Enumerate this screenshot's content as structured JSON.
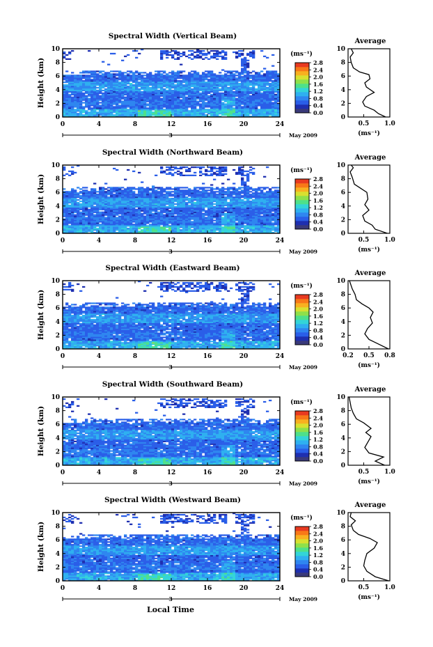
{
  "figure": {
    "time_axis_label": "Local Time",
    "height_axis_label": "Height (km)",
    "date_day": "3",
    "date_month_year": "May 2009",
    "colorbar_unit": "(ms⁻¹)",
    "profile_title": "Average",
    "profile_xlabel": "(ms⁻¹)"
  },
  "colorbar": {
    "ticks": [
      "0.0",
      "0.4",
      "0.8",
      "1.2",
      "1.6",
      "2.0",
      "2.4",
      "2.8"
    ],
    "colors": [
      "#3a3a7a",
      "#1e2fb0",
      "#2a5ee8",
      "#2f86f0",
      "#2fb0f0",
      "#33d4d8",
      "#4ee08a",
      "#8fe04a",
      "#d8e030",
      "#f8b020",
      "#f87818",
      "#e83a20"
    ]
  },
  "chart_data": [
    {
      "type": "heatmap",
      "title": "Spectral Width (Vertical Beam)",
      "xlabel": "Local Time",
      "ylabel": "Height (km)",
      "x_ticks": [
        0,
        4,
        8,
        12,
        16,
        20,
        24
      ],
      "y_ticks": [
        0,
        2,
        4,
        6,
        8,
        10
      ],
      "xlim": [
        0,
        24
      ],
      "ylim": [
        0,
        10
      ],
      "value_range": [
        0.0,
        2.8
      ],
      "value_unit": "ms⁻¹",
      "profile": {
        "title": "Average",
        "xlim": [
          0.2,
          1.0
        ],
        "x_ticks": [
          "0.5",
          "1.0"
        ],
        "points": [
          [
            0.92,
            0.0
          ],
          [
            0.78,
            0.5
          ],
          [
            0.7,
            1.0
          ],
          [
            0.52,
            1.6
          ],
          [
            0.48,
            2.2
          ],
          [
            0.55,
            3.0
          ],
          [
            0.7,
            3.6
          ],
          [
            0.55,
            4.4
          ],
          [
            0.52,
            5.0
          ],
          [
            0.62,
            5.6
          ],
          [
            0.6,
            6.2
          ],
          [
            0.42,
            6.6
          ],
          [
            0.3,
            7.2
          ],
          [
            0.26,
            8.0
          ],
          [
            0.24,
            8.8
          ],
          [
            0.3,
            9.4
          ],
          [
            0.26,
            10.0
          ]
        ]
      }
    },
    {
      "type": "heatmap",
      "title": "Spectral Width (Northward Beam)",
      "xlabel": "Local Time",
      "ylabel": "Height (km)",
      "x_ticks": [
        0,
        4,
        8,
        12,
        16,
        20,
        24
      ],
      "y_ticks": [
        0,
        2,
        4,
        6,
        8,
        10
      ],
      "xlim": [
        0,
        24
      ],
      "ylim": [
        0,
        10
      ],
      "value_range": [
        0.0,
        2.8
      ],
      "value_unit": "ms⁻¹",
      "profile": {
        "title": "Average",
        "xlim": [
          0.2,
          1.0
        ],
        "x_ticks": [
          "0.5",
          "1.0"
        ],
        "points": [
          [
            0.95,
            0.0
          ],
          [
            0.72,
            0.6
          ],
          [
            0.66,
            1.2
          ],
          [
            0.52,
            1.8
          ],
          [
            0.48,
            2.6
          ],
          [
            0.6,
            3.4
          ],
          [
            0.52,
            4.2
          ],
          [
            0.58,
            5.0
          ],
          [
            0.56,
            6.0
          ],
          [
            0.44,
            6.6
          ],
          [
            0.32,
            7.2
          ],
          [
            0.28,
            8.2
          ],
          [
            0.24,
            9.0
          ],
          [
            0.3,
            9.6
          ],
          [
            0.26,
            10.0
          ]
        ]
      }
    },
    {
      "type": "heatmap",
      "title": "Spectral Width (Eastward Beam)",
      "xlabel": "Local Time",
      "ylabel": "Height (km)",
      "x_ticks": [
        0,
        4,
        8,
        12,
        16,
        20,
        24
      ],
      "y_ticks": [
        0,
        2,
        4,
        6,
        8,
        10
      ],
      "xlim": [
        0,
        24
      ],
      "ylim": [
        0,
        10
      ],
      "value_range": [
        0.0,
        2.8
      ],
      "value_unit": "ms⁻¹",
      "profile": {
        "title": "Average",
        "xlim": [
          0.2,
          0.8
        ],
        "x_ticks": [
          "0.2",
          "0.5",
          "0.8"
        ],
        "points": [
          [
            0.78,
            0.0
          ],
          [
            0.62,
            0.8
          ],
          [
            0.5,
            1.4
          ],
          [
            0.44,
            2.2
          ],
          [
            0.48,
            3.0
          ],
          [
            0.55,
            3.8
          ],
          [
            0.52,
            4.6
          ],
          [
            0.56,
            5.4
          ],
          [
            0.5,
            6.0
          ],
          [
            0.4,
            6.6
          ],
          [
            0.32,
            7.2
          ],
          [
            0.3,
            8.0
          ],
          [
            0.26,
            8.8
          ],
          [
            0.24,
            9.4
          ],
          [
            0.22,
            10.0
          ]
        ]
      }
    },
    {
      "type": "heatmap",
      "title": "Spectral Width (Southward Beam)",
      "xlabel": "Local Time",
      "ylabel": "Height (km)",
      "x_ticks": [
        0,
        4,
        8,
        12,
        16,
        20,
        24
      ],
      "y_ticks": [
        0,
        2,
        4,
        6,
        8,
        10
      ],
      "xlim": [
        0,
        24
      ],
      "ylim": [
        0,
        10
      ],
      "value_range": [
        0.0,
        2.8
      ],
      "value_unit": "ms⁻¹",
      "profile": {
        "title": "Average",
        "xlim": [
          0.2,
          1.0
        ],
        "x_ticks": [
          "0.5",
          "1.0"
        ],
        "points": [
          [
            0.9,
            0.0
          ],
          [
            0.72,
            0.6
          ],
          [
            0.88,
            1.2
          ],
          [
            0.6,
            1.8
          ],
          [
            0.52,
            2.6
          ],
          [
            0.58,
            3.4
          ],
          [
            0.64,
            4.2
          ],
          [
            0.54,
            4.8
          ],
          [
            0.64,
            5.4
          ],
          [
            0.5,
            6.2
          ],
          [
            0.36,
            6.8
          ],
          [
            0.3,
            7.6
          ],
          [
            0.26,
            8.4
          ],
          [
            0.24,
            9.2
          ],
          [
            0.22,
            10.0
          ]
        ]
      }
    },
    {
      "type": "heatmap",
      "title": "Spectral Width (Westward Beam)",
      "xlabel": "Local Time",
      "ylabel": "Height (km)",
      "x_ticks": [
        0,
        4,
        8,
        12,
        16,
        20,
        24
      ],
      "y_ticks": [
        0,
        2,
        4,
        6,
        8,
        10
      ],
      "xlim": [
        0,
        24
      ],
      "ylim": [
        0,
        10
      ],
      "value_range": [
        0.0,
        2.8
      ],
      "value_unit": "ms⁻¹",
      "profile": {
        "title": "Average",
        "xlim": [
          0.2,
          1.0
        ],
        "x_ticks": [
          "0.5",
          "1.0"
        ],
        "points": [
          [
            0.98,
            0.0
          ],
          [
            0.72,
            0.6
          ],
          [
            0.56,
            1.4
          ],
          [
            0.5,
            2.2
          ],
          [
            0.52,
            3.0
          ],
          [
            0.56,
            4.0
          ],
          [
            0.7,
            4.8
          ],
          [
            0.76,
            5.6
          ],
          [
            0.62,
            6.2
          ],
          [
            0.4,
            6.8
          ],
          [
            0.3,
            7.4
          ],
          [
            0.26,
            8.2
          ],
          [
            0.34,
            8.8
          ],
          [
            0.24,
            9.4
          ],
          [
            0.26,
            10.0
          ]
        ]
      }
    }
  ]
}
